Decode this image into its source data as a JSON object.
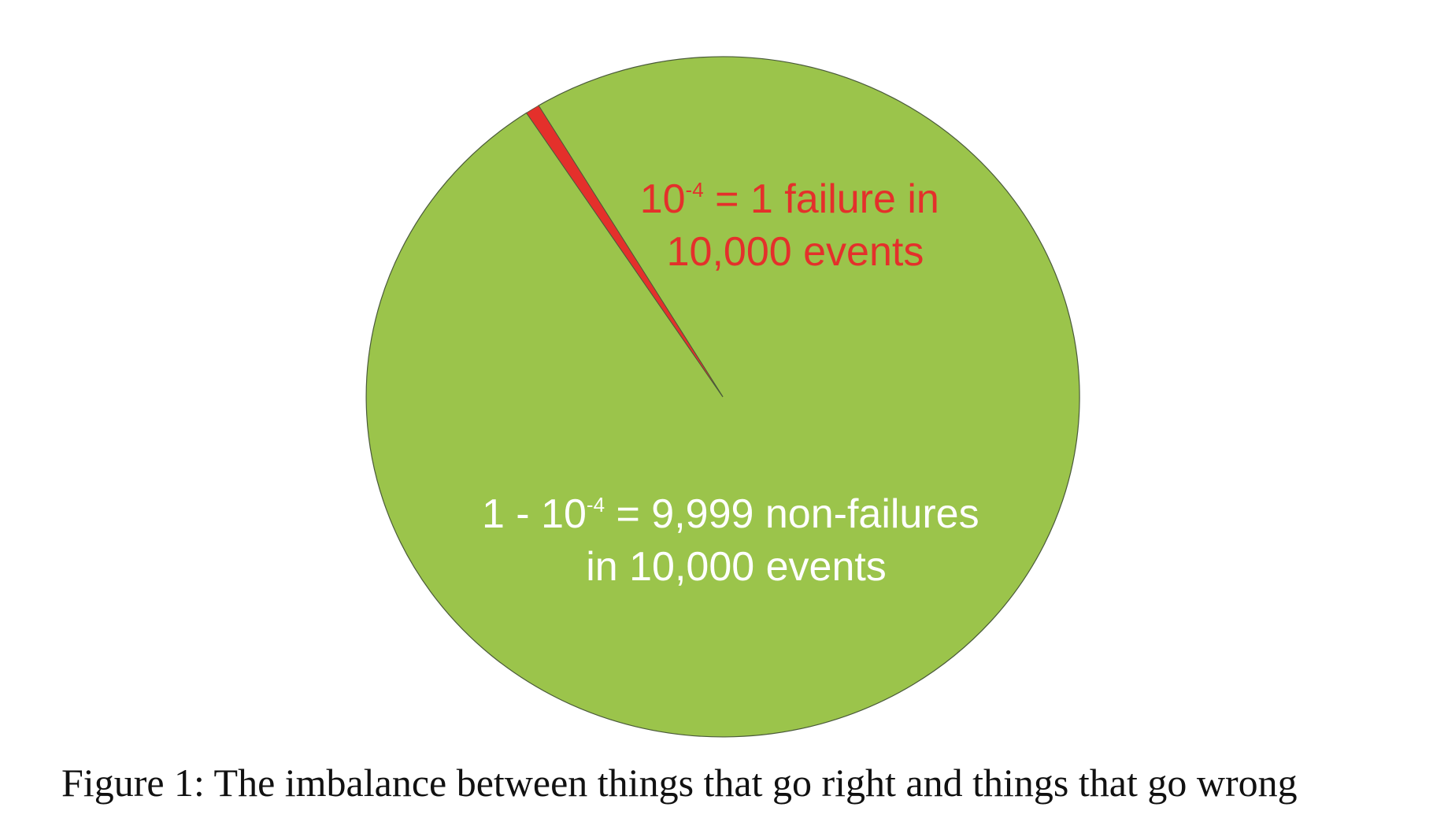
{
  "chart_data": {
    "type": "pie",
    "slices": [
      {
        "label": "failure",
        "value": 0.0001,
        "color": "#e4302b"
      },
      {
        "label": "non-failures",
        "value": 0.9999,
        "color": "#9bc44b"
      }
    ],
    "annotations": {
      "failure": {
        "line1_a": "10",
        "line1_sup": "-4",
        "line1_b": " = 1 failure in",
        "line2": "10,000 events",
        "color": "#e4302b"
      },
      "non_failure": {
        "line1_a": "1 - 10",
        "line1_sup": "-4",
        "line1_b": " = 9,999 non-failures",
        "line2": "in 10,000 events",
        "color": "#ffffff"
      }
    },
    "border_color": "#4a5a3a"
  },
  "caption": "Figure 1: The imbalance between things that go right and things that go wrong"
}
